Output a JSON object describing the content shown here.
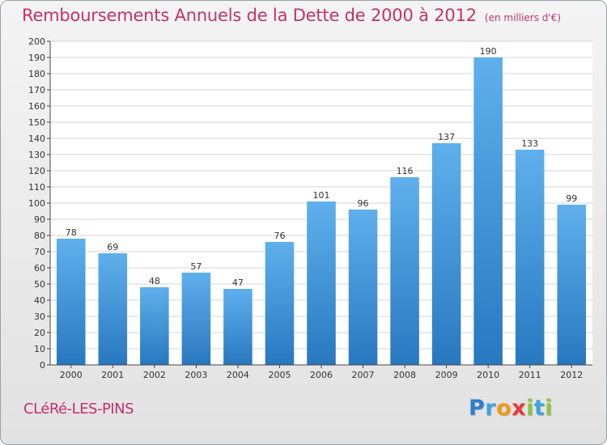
{
  "header": {
    "title": "Remboursements Annuels de la Dette de 2000 à 2012",
    "subtitle": "(en milliers d'€)"
  },
  "footer": {
    "commune": "CLéRé-LES-PINS",
    "logo_letters": [
      {
        "ch": "P",
        "color": "#2a7fd0"
      },
      {
        "ch": "r",
        "color": "#3ba3e0"
      },
      {
        "ch": "o",
        "color": "#f29a17"
      },
      {
        "ch": "x",
        "color": "#e83a3a"
      },
      {
        "ch": "i",
        "color": "#8bc53f"
      },
      {
        "ch": "t",
        "color": "#3ba3e0"
      },
      {
        "ch": "i",
        "color": "#8bc53f"
      }
    ]
  },
  "colors": {
    "bar_top": "#5fb0ec",
    "bar_bottom": "#2878c0",
    "title": "#c2326b"
  },
  "chart_data": {
    "type": "bar",
    "categories": [
      "2000",
      "2001",
      "2002",
      "2003",
      "2004",
      "2005",
      "2006",
      "2007",
      "2008",
      "2009",
      "2010",
      "2011",
      "2012"
    ],
    "values": [
      78,
      69,
      48,
      57,
      47,
      76,
      101,
      96,
      116,
      137,
      190,
      133,
      99
    ],
    "title": "Remboursements Annuels de la Dette de 2000 à 2012",
    "unit": "(en milliers d'€)",
    "xlabel": "",
    "ylabel": "",
    "ylim": [
      0,
      200
    ],
    "ytick_step": 10,
    "grid": true,
    "data_labels": true
  }
}
